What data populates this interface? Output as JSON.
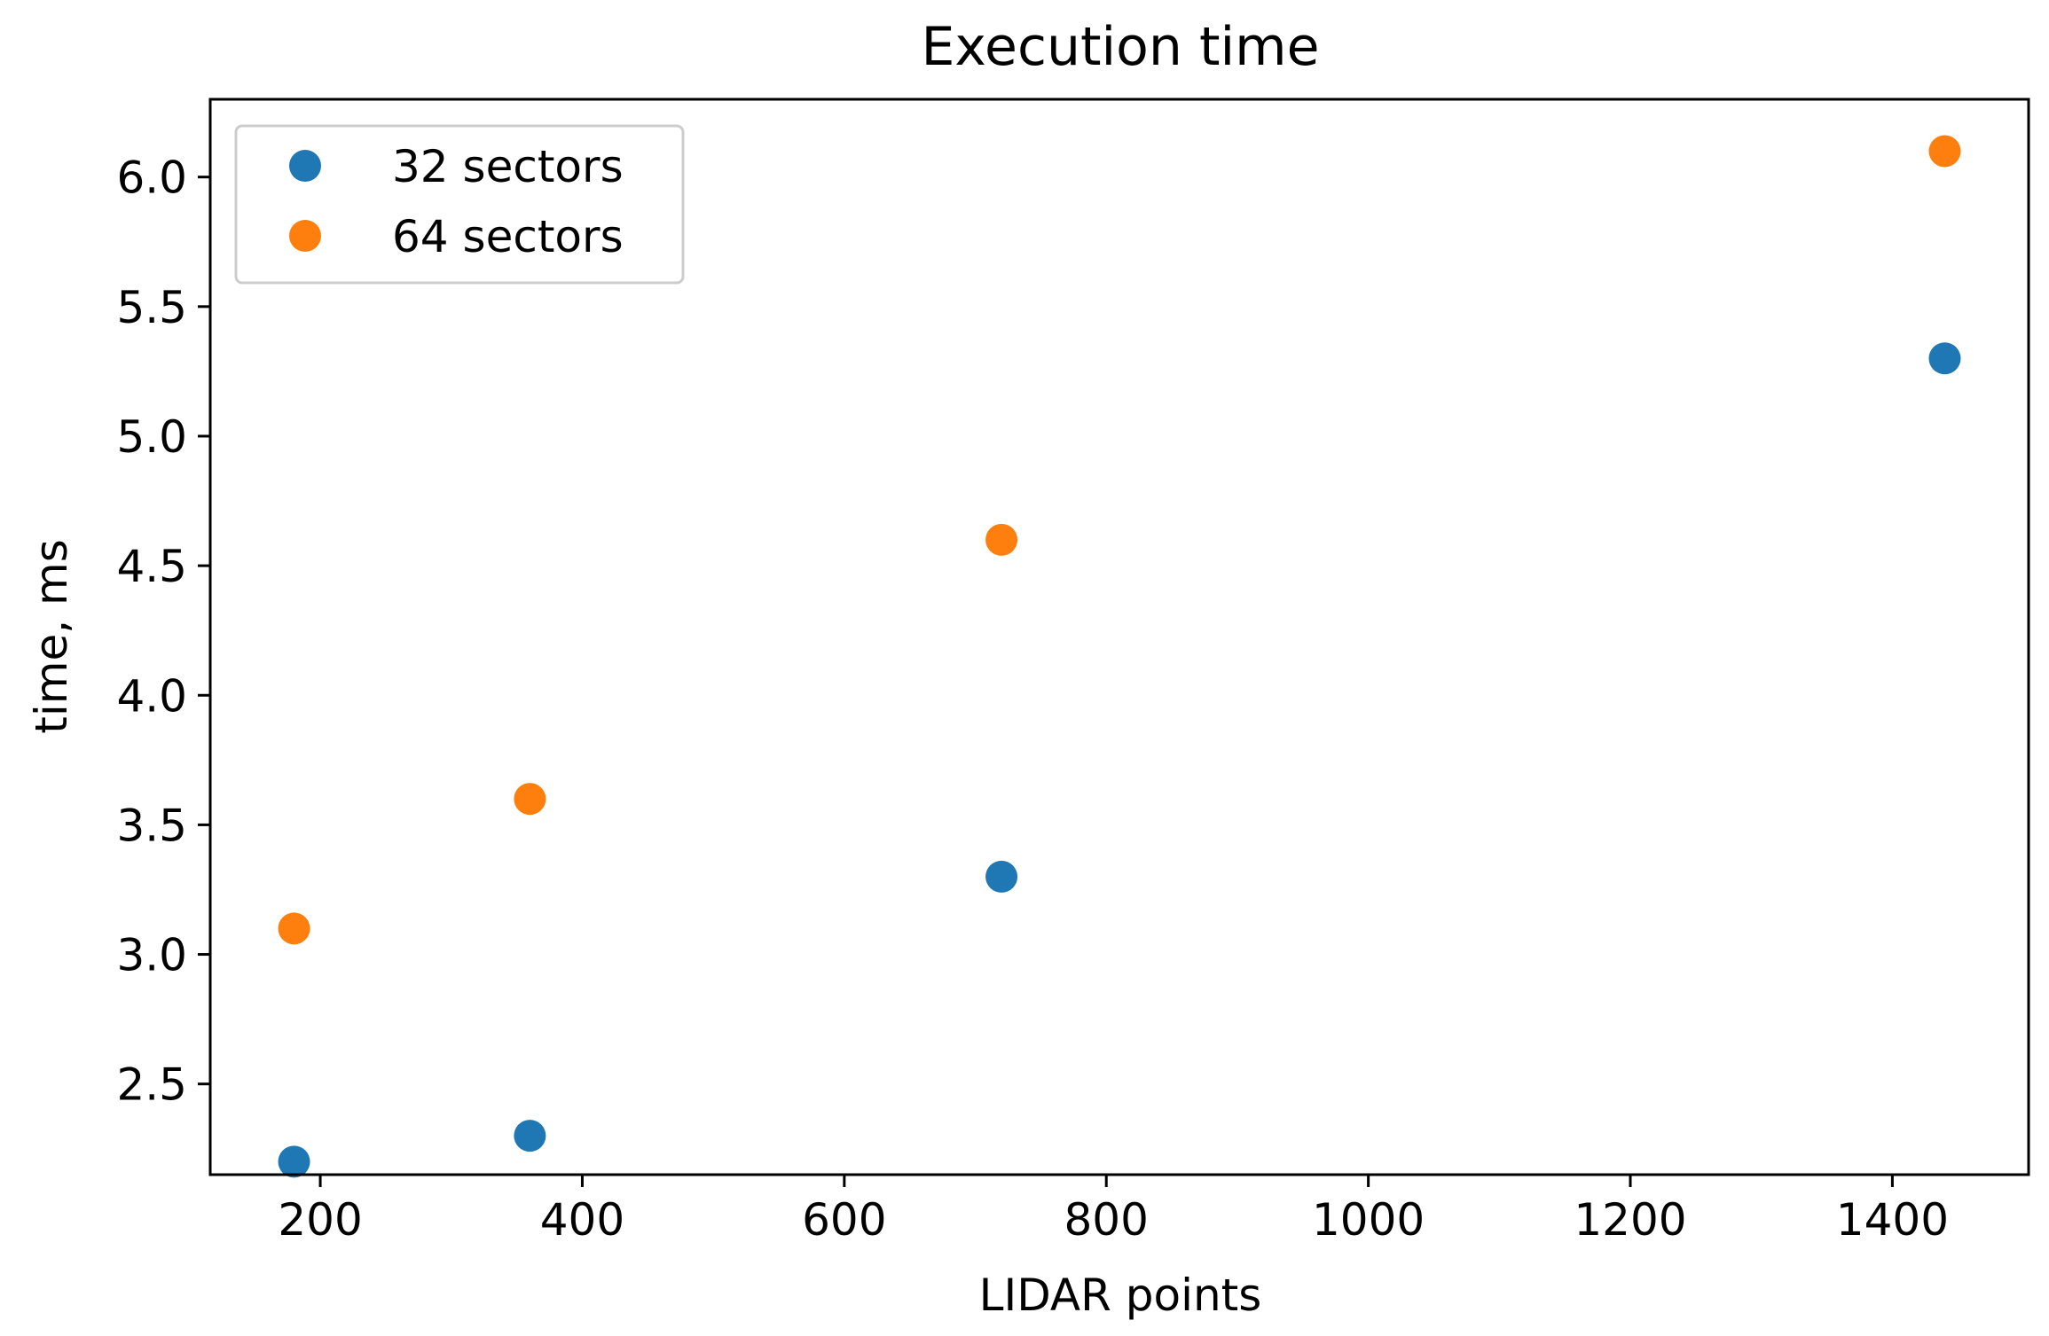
{
  "chart_data": {
    "type": "scatter",
    "title": "Execution time",
    "xlabel": "LIDAR points",
    "ylabel": "time, ms",
    "xlim": [
      116,
      1504
    ],
    "ylim": [
      2.15,
      6.3
    ],
    "xticks": [
      200,
      400,
      600,
      800,
      1000,
      1200,
      1400
    ],
    "xtick_labels": [
      "200",
      "400",
      "600",
      "800",
      "1000",
      "1200",
      "1400"
    ],
    "yticks": [
      2.5,
      3.0,
      3.5,
      4.0,
      4.5,
      5.0,
      5.5,
      6.0
    ],
    "ytick_labels": [
      "2.5",
      "3.0",
      "3.5",
      "4.0",
      "4.5",
      "5.0",
      "5.5",
      "6.0"
    ],
    "grid": false,
    "legend_position": "upper-left",
    "series": [
      {
        "name": "32 sectors",
        "color": "#1f77b4",
        "x": [
          180,
          360,
          720,
          1440
        ],
        "y": [
          2.2,
          2.3,
          3.3,
          5.3
        ]
      },
      {
        "name": "64 sectors",
        "color": "#ff7f0e",
        "x": [
          180,
          360,
          720,
          1440
        ],
        "y": [
          3.1,
          3.6,
          4.6,
          6.1
        ]
      }
    ]
  }
}
